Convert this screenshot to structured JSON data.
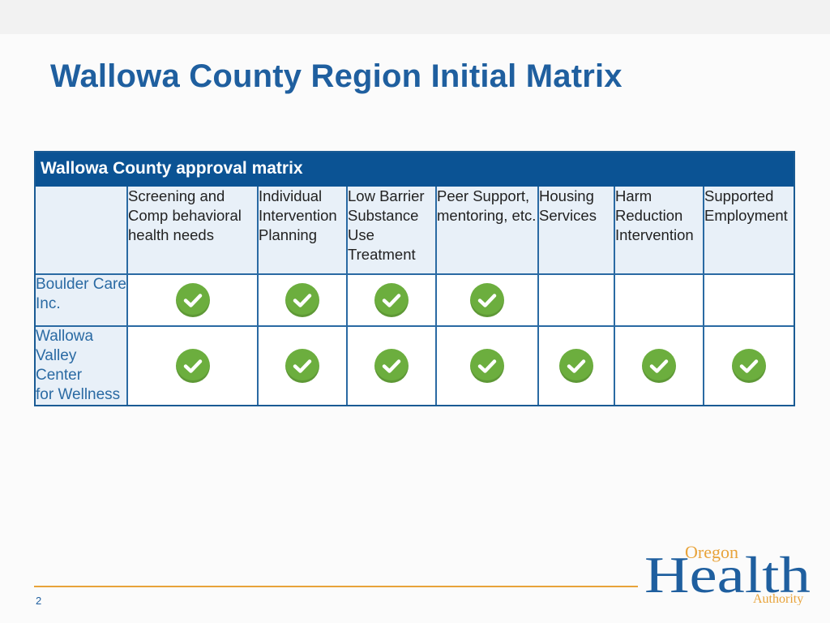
{
  "slide": {
    "title": "Wallowa County Region Initial Matrix",
    "page_number": "2"
  },
  "matrix": {
    "header": "Wallowa County approval matrix",
    "columns": [
      "Screening and\nComp behavioral\nhealth needs",
      "Individual\nIntervention\nPlanning",
      "Low Barrier\nSubstance\nUse\nTreatment",
      "Peer Support,\nmentoring, etc.",
      "Housing\nServices",
      "Harm\nReduction\nIntervention",
      "Supported\nEmployment"
    ],
    "rows": [
      {
        "label": "Boulder Care\nInc.",
        "approved": [
          true,
          true,
          true,
          true,
          false,
          false,
          false
        ]
      },
      {
        "label": "Wallowa\nValley Center\nfor Wellness",
        "approved": [
          true,
          true,
          true,
          true,
          true,
          true,
          true
        ]
      }
    ]
  },
  "logo": {
    "line1": "Oregon",
    "line2": "Health",
    "line3": "Authority"
  },
  "colors": {
    "title": "#1f5f9f",
    "header_bg": "#0b5394",
    "check": "#6cae3e",
    "footer_line": "#e8a33a"
  }
}
